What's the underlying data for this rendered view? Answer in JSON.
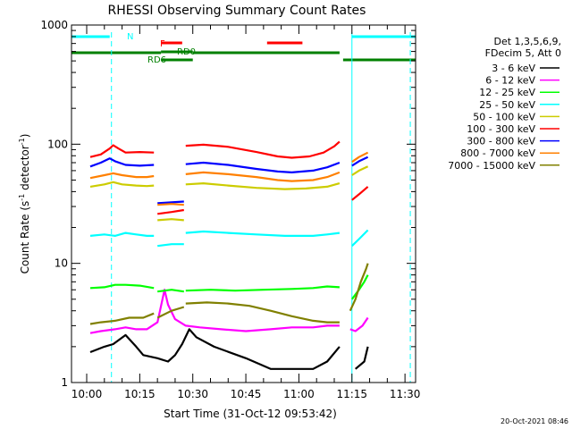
{
  "chart_data": {
    "type": "line",
    "title": "RHESSI Observing Summary Count Rates",
    "xlabel": "Start Time (31-Oct-12 09:53:42)",
    "ylabel_main": "Count Rate (s",
    "ylabel_sup": "-1",
    "ylabel_mid": " detector",
    "ylabel_sup2": "-1",
    "ylabel_end": ")",
    "yscale": "log",
    "ylim": [
      1,
      1000
    ],
    "xlim_minutes": [
      -4.3,
      93
    ],
    "y_ticks": [
      {
        "label": "1",
        "value": 1
      },
      {
        "label": "10",
        "value": 10
      },
      {
        "label": "100",
        "value": 100
      },
      {
        "label": "1000",
        "value": 1000
      }
    ],
    "x_ticks": [
      {
        "label": "10:00",
        "value": 0
      },
      {
        "label": "10:15",
        "value": 15
      },
      {
        "label": "10:30",
        "value": 30
      },
      {
        "label": "10:45",
        "value": 45
      },
      {
        "label": "11:00",
        "value": 60
      },
      {
        "label": "11:15",
        "value": 75
      },
      {
        "label": "11:30",
        "value": 90
      }
    ],
    "legend_header": [
      "Det 1,3,5,6,9,",
      "FDecim 5, Att 0"
    ],
    "series": [
      {
        "name": "3 - 6 keV",
        "color": "#000000",
        "segments": [
          [
            [
              1,
              1.8
            ],
            [
              5,
              2.0
            ],
            [
              7.5,
              2.1
            ],
            [
              11,
              2.5
            ],
            [
              14,
              2.0
            ],
            [
              16,
              1.7
            ],
            [
              20,
              1.6
            ],
            [
              23,
              1.5
            ],
            [
              25,
              1.7
            ],
            [
              27,
              2.1
            ],
            [
              29,
              2.8
            ],
            [
              31,
              2.4
            ],
            [
              36,
              2.0
            ],
            [
              45,
              1.6
            ],
            [
              52,
              1.3
            ],
            [
              56,
              1.3
            ],
            [
              60,
              1.3
            ],
            [
              64,
              1.3
            ],
            [
              68,
              1.5
            ],
            [
              71.5,
              2.0
            ]
          ],
          [
            [
              76,
              1.3
            ],
            [
              78.5,
              1.5
            ],
            [
              79.5,
              2.0
            ]
          ]
        ]
      },
      {
        "name": "6 - 12 keV",
        "color": "#ff00ff",
        "segments": [
          [
            [
              1,
              2.6
            ],
            [
              4,
              2.7
            ],
            [
              8,
              2.8
            ],
            [
              11,
              2.9
            ],
            [
              14,
              2.8
            ],
            [
              17,
              2.8
            ],
            [
              20,
              3.2
            ],
            [
              22,
              6.0
            ],
            [
              23,
              4.5
            ],
            [
              25,
              3.4
            ],
            [
              28,
              3.0
            ],
            [
              32,
              2.9
            ],
            [
              38,
              2.8
            ],
            [
              45,
              2.7
            ],
            [
              52,
              2.8
            ],
            [
              58,
              2.9
            ],
            [
              64,
              2.9
            ],
            [
              68,
              3.0
            ],
            [
              71.5,
              3.0
            ]
          ],
          [
            [
              74.5,
              2.8
            ],
            [
              76,
              2.7
            ],
            [
              78,
              3.0
            ],
            [
              79.5,
              3.5
            ]
          ]
        ]
      },
      {
        "name": "12 - 25 keV",
        "color": "#00ff00",
        "segments": [
          [
            [
              1,
              6.2
            ],
            [
              5,
              6.3
            ],
            [
              8,
              6.6
            ],
            [
              11,
              6.6
            ],
            [
              15,
              6.5
            ],
            [
              19,
              6.2
            ]
          ],
          [
            [
              20,
              5.8
            ],
            [
              24,
              6.0
            ],
            [
              27.5,
              5.8
            ]
          ],
          [
            [
              28,
              5.9
            ],
            [
              35,
              6.0
            ],
            [
              42,
              5.9
            ],
            [
              50,
              6.0
            ],
            [
              58,
              6.1
            ],
            [
              64,
              6.2
            ],
            [
              68,
              6.4
            ],
            [
              71.5,
              6.3
            ]
          ],
          [
            [
              75,
              5.0
            ],
            [
              77,
              6.0
            ],
            [
              78.5,
              7.0
            ],
            [
              79.5,
              8.0
            ]
          ]
        ]
      },
      {
        "name": "25 - 50 keV",
        "color": "#00ffff",
        "segments": [
          [
            [
              1,
              17
            ],
            [
              5,
              17.5
            ],
            [
              8,
              17
            ],
            [
              11,
              18
            ],
            [
              14,
              17.5
            ],
            [
              17,
              17
            ],
            [
              19,
              17
            ]
          ],
          [
            [
              20,
              14
            ],
            [
              24,
              14.5
            ],
            [
              27.5,
              14.5
            ]
          ],
          [
            [
              28,
              18
            ],
            [
              33,
              18.5
            ],
            [
              40,
              18
            ],
            [
              48,
              17.5
            ],
            [
              56,
              17
            ],
            [
              64,
              17
            ],
            [
              68,
              17.5
            ],
            [
              71.5,
              18
            ]
          ],
          [
            [
              75,
              14
            ],
            [
              77,
              16
            ],
            [
              79.5,
              19
            ]
          ]
        ]
      },
      {
        "name": "50 - 100 keV",
        "color": "#cccc00",
        "segments": [
          [
            [
              1,
              44
            ],
            [
              5,
              46
            ],
            [
              7.5,
              48
            ],
            [
              10,
              46
            ],
            [
              14,
              45
            ],
            [
              17,
              44.5
            ],
            [
              19,
              45
            ]
          ],
          [
            [
              20,
              23
            ],
            [
              24,
              23.5
            ],
            [
              27.5,
              23
            ]
          ],
          [
            [
              28,
              46
            ],
            [
              33,
              47
            ],
            [
              40,
              45
            ],
            [
              48,
              43
            ],
            [
              56,
              42
            ],
            [
              62,
              42.5
            ],
            [
              68,
              44
            ],
            [
              71.5,
              47
            ]
          ],
          [
            [
              75,
              55
            ],
            [
              77,
              60
            ],
            [
              79.5,
              65
            ]
          ]
        ]
      },
      {
        "name": "100 - 300 keV",
        "color": "#ff0000",
        "segments": [
          [
            [
              1,
              78
            ],
            [
              4,
              82
            ],
            [
              6.5,
              92
            ],
            [
              7.5,
              98
            ],
            [
              9,
              92
            ],
            [
              11,
              85
            ],
            [
              15,
              86
            ],
            [
              19,
              85
            ]
          ],
          [
            [
              20,
              26
            ],
            [
              24,
              27
            ],
            [
              27.5,
              28
            ]
          ],
          [
            [
              28,
              97
            ],
            [
              33,
              99
            ],
            [
              40,
              95
            ],
            [
              48,
              86
            ],
            [
              54,
              79
            ],
            [
              58,
              77
            ],
            [
              63,
              79
            ],
            [
              67,
              85
            ],
            [
              70,
              96
            ],
            [
              71.5,
              105
            ]
          ],
          [
            [
              75,
              34
            ],
            [
              77,
              38
            ],
            [
              79.5,
              44
            ]
          ]
        ]
      },
      {
        "name": "300 - 800 keV",
        "color": "#0000ff",
        "segments": [
          [
            [
              1,
              65
            ],
            [
              4,
              70
            ],
            [
              6.5,
              76
            ],
            [
              8,
              72
            ],
            [
              11,
              67
            ],
            [
              15,
              66
            ],
            [
              19,
              67
            ]
          ],
          [
            [
              20,
              32
            ],
            [
              24,
              32.5
            ],
            [
              27.5,
              33
            ]
          ],
          [
            [
              28,
              68
            ],
            [
              33,
              70
            ],
            [
              40,
              67
            ],
            [
              48,
              62
            ],
            [
              54,
              59
            ],
            [
              58,
              58
            ],
            [
              64,
              60
            ],
            [
              68,
              64
            ],
            [
              71.5,
              70
            ]
          ],
          [
            [
              75,
              66
            ],
            [
              77,
              72
            ],
            [
              79.5,
              78
            ]
          ]
        ]
      },
      {
        "name": "800 - 7000 keV",
        "color": "#ff8000",
        "segments": [
          [
            [
              1,
              52
            ],
            [
              5,
              55
            ],
            [
              7.5,
              57
            ],
            [
              10,
              55
            ],
            [
              14,
              53
            ],
            [
              17,
              53
            ],
            [
              19,
              54
            ]
          ],
          [
            [
              20,
              31
            ],
            [
              24,
              31.5
            ],
            [
              27.5,
              31
            ]
          ],
          [
            [
              28,
              56
            ],
            [
              33,
              58
            ],
            [
              40,
              56
            ],
            [
              48,
              53
            ],
            [
              54,
              50
            ],
            [
              58,
              49
            ],
            [
              64,
              50
            ],
            [
              68,
              53
            ],
            [
              71.5,
              58
            ]
          ],
          [
            [
              75,
              71
            ],
            [
              77,
              78
            ],
            [
              79.5,
              85
            ]
          ]
        ]
      },
      {
        "name": "7000 - 15000 keV",
        "color": "#808000",
        "segments": [
          [
            [
              1,
              3.1
            ],
            [
              4,
              3.2
            ],
            [
              8,
              3.3
            ],
            [
              12,
              3.5
            ],
            [
              16,
              3.5
            ],
            [
              19,
              3.8
            ]
          ],
          [
            [
              20,
              3.5
            ],
            [
              24,
              4.0
            ],
            [
              27.5,
              4.3
            ]
          ],
          [
            [
              28,
              4.6
            ],
            [
              34,
              4.7
            ],
            [
              40,
              4.6
            ],
            [
              46,
              4.4
            ],
            [
              52,
              4.0
            ],
            [
              58,
              3.6
            ],
            [
              64,
              3.3
            ],
            [
              68,
              3.2
            ],
            [
              71.5,
              3.2
            ]
          ],
          [
            [
              74.5,
              4.0
            ],
            [
              76,
              5.0
            ],
            [
              77.5,
              7.0
            ],
            [
              79,
              9.0
            ],
            [
              79.5,
              10.0
            ]
          ]
        ]
      }
    ],
    "flag_labels": {
      "N": "N",
      "F": "F",
      "RD0": "RD0",
      "RD6": "RD6"
    },
    "flag_bars": {
      "N": {
        "color": "#00ffff",
        "ranges": [
          [
            -4.3,
            6.5
          ],
          [
            75,
            93
          ]
        ]
      },
      "F": {
        "color": "#ff0000",
        "ranges": [
          [
            21,
            27
          ],
          [
            51,
            61
          ]
        ]
      },
      "RD0": {
        "color": "#008000",
        "ranges": [
          [
            21,
            30
          ]
        ]
      },
      "RD6": {
        "color": "#008000",
        "ranges": [
          [
            -4.3,
            21
          ],
          [
            21,
            30
          ],
          [
            30,
            71.5
          ],
          [
            72.5,
            93
          ]
        ]
      }
    },
    "vertical_lines": {
      "dashed_cyan": [
        7,
        91.5
      ],
      "solid_cyan": [
        75
      ]
    }
  },
  "footer_timestamp": "20-Oct-2021 08:46"
}
